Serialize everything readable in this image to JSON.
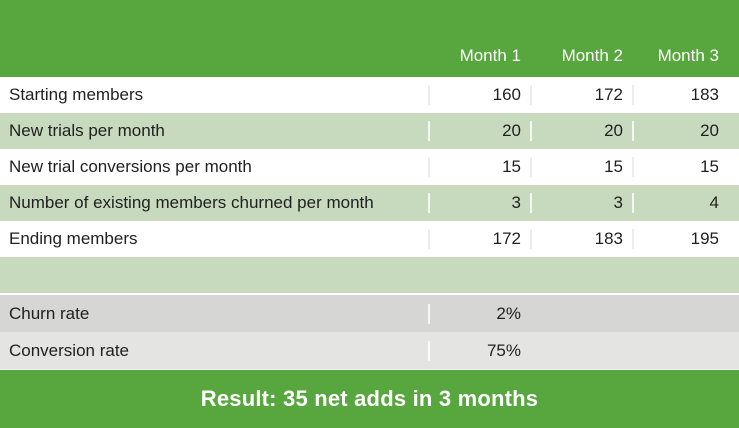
{
  "colors": {
    "brand_green": "#57A63E",
    "row_light_green": "#C8DABE",
    "summary_gray_dark": "#D6D6D4",
    "summary_gray_light": "#E4E4E2",
    "row_white": "#FFFFFF",
    "text_dark": "#1F1F1F",
    "text_white": "#FFFFFF"
  },
  "header": {
    "columns": [
      "Month 1",
      "Month 2",
      "Month 3"
    ]
  },
  "table": {
    "rows": [
      {
        "label": "Starting members",
        "values": [
          "160",
          "172",
          "183"
        ]
      },
      {
        "label": "New trials per month",
        "values": [
          "20",
          "20",
          "20"
        ]
      },
      {
        "label": "New trial conversions per month",
        "values": [
          "15",
          "15",
          "15"
        ]
      },
      {
        "label": "Number of existing members churned per month",
        "values": [
          "3",
          "3",
          "4"
        ]
      },
      {
        "label": "Ending members",
        "values": [
          "172",
          "183",
          "195"
        ]
      },
      {
        "label": "",
        "values": [
          "",
          "",
          ""
        ]
      }
    ],
    "summary": [
      {
        "label": "Churn rate",
        "values": [
          "2%",
          "",
          ""
        ]
      },
      {
        "label": "Conversion rate",
        "values": [
          "75%",
          "",
          ""
        ]
      }
    ]
  },
  "footer": {
    "text": "Result: 35 net adds in 3 months"
  },
  "chart_data": {
    "type": "table",
    "columns": [
      "",
      "Month 1",
      "Month 2",
      "Month 3"
    ],
    "rows": [
      [
        "Starting members",
        160,
        172,
        183
      ],
      [
        "New trials per month",
        20,
        20,
        20
      ],
      [
        "New trial conversions per month",
        15,
        15,
        15
      ],
      [
        "Number of existing members churned per month",
        3,
        3,
        4
      ],
      [
        "Ending members",
        172,
        183,
        195
      ],
      [
        "Churn rate",
        "2%",
        "",
        ""
      ],
      [
        "Conversion rate",
        "75%",
        "",
        ""
      ]
    ],
    "title": "Result: 35 net adds in 3 months"
  }
}
